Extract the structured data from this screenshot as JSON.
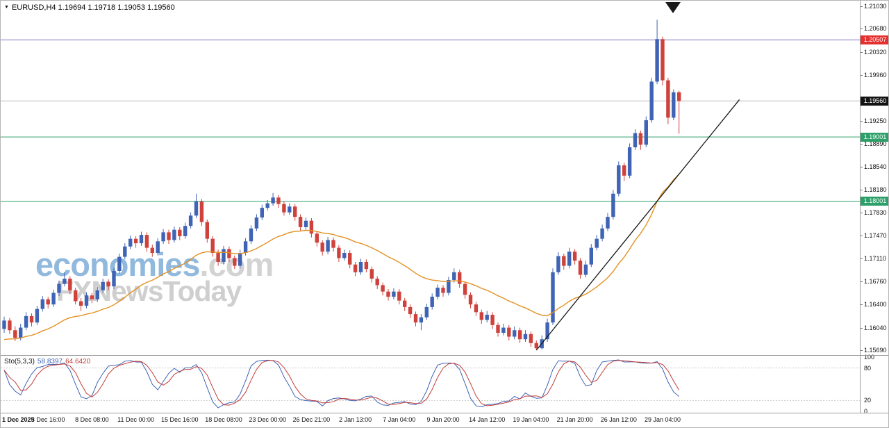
{
  "header": {
    "dropdown_icon": "▼",
    "symbol_info": "EURUSD,H4 1.19694 1.19718 1.19053 1.19560"
  },
  "watermark": {
    "line1_main": "economies",
    "line1_suffix": ".com",
    "line2": "FXNewsToday"
  },
  "price_axis": {
    "ticks": [
      "1.21030",
      "1.20680",
      "1.20320",
      "1.19960",
      "1.19250",
      "1.18890",
      "1.18540",
      "1.18180",
      "1.17830",
      "1.17470",
      "1.17110",
      "1.16760",
      "1.16400",
      "1.16040",
      "1.15690"
    ],
    "badges": [
      {
        "label": "1.20507",
        "bg": "#e53030"
      },
      {
        "label": "1.19560",
        "bg": "#141414"
      },
      {
        "label": "1.19001",
        "bg": "#2da06a"
      },
      {
        "label": "1.18001",
        "bg": "#2da06a"
      }
    ]
  },
  "time_axis": {
    "labels": [
      "1 Dec 2025",
      "3 Dec 16:00",
      "8 Dec 08:00",
      "11 Dec 00:00",
      "15 Dec 16:00",
      "18 Dec 08:00",
      "23 Dec 00:00",
      "26 Dec 21:00",
      "2 Jan 13:00",
      "7 Jan 04:00",
      "9 Jan 20:00",
      "14 Jan 12:00",
      "19 Jan 04:00",
      "21 Jan 20:00",
      "26 Jan 12:00",
      "29 Jan 04:00"
    ]
  },
  "sto_panel": {
    "label": "Sto(5,3,3)",
    "main_value": "58.8397",
    "signal_value": "64.6420",
    "scale_labels": [
      "100",
      "80",
      "20",
      "0"
    ]
  },
  "chart_data": {
    "type": "candlestick",
    "symbol": "EURUSD",
    "timeframe": "H4",
    "current": {
      "open": 1.19694,
      "high": 1.19718,
      "low": 1.19053,
      "close": 1.1956
    },
    "ylim": [
      1.1569,
      1.2103
    ],
    "label_every": 8,
    "colors": {
      "up": "#3f63b5",
      "down": "#cf423c"
    },
    "candles": [
      [
        1.1602,
        1.1621,
        1.1596,
        1.1615
      ],
      [
        1.1615,
        1.1619,
        1.1594,
        1.16
      ],
      [
        1.16,
        1.1606,
        1.1583,
        1.1588
      ],
      [
        1.1588,
        1.161,
        1.1584,
        1.1604
      ],
      [
        1.1604,
        1.1628,
        1.16,
        1.1622
      ],
      [
        1.1622,
        1.1626,
        1.1606,
        1.1612
      ],
      [
        1.1612,
        1.1638,
        1.1608,
        1.1633
      ],
      [
        1.1633,
        1.1653,
        1.1629,
        1.1648
      ],
      [
        1.1648,
        1.1652,
        1.1634,
        1.164
      ],
      [
        1.164,
        1.1663,
        1.1636,
        1.1658
      ],
      [
        1.1658,
        1.1677,
        1.1653,
        1.1672
      ],
      [
        1.1672,
        1.169,
        1.1668,
        1.168
      ],
      [
        1.168,
        1.1684,
        1.1656,
        1.1662
      ],
      [
        1.1662,
        1.1666,
        1.164,
        1.1645
      ],
      [
        1.1645,
        1.165,
        1.163,
        1.1638
      ],
      [
        1.1638,
        1.1659,
        1.1634,
        1.1654
      ],
      [
        1.1654,
        1.1658,
        1.1642,
        1.1648
      ],
      [
        1.1648,
        1.1667,
        1.1644,
        1.1662
      ],
      [
        1.1662,
        1.168,
        1.1658,
        1.1675
      ],
      [
        1.1675,
        1.1679,
        1.1662,
        1.1668
      ],
      [
        1.1668,
        1.1697,
        1.1664,
        1.1692
      ],
      [
        1.1692,
        1.1719,
        1.1688,
        1.1714
      ],
      [
        1.1714,
        1.1735,
        1.171,
        1.173
      ],
      [
        1.173,
        1.1747,
        1.1726,
        1.1742
      ],
      [
        1.1742,
        1.1746,
        1.1728,
        1.1735
      ],
      [
        1.1735,
        1.1753,
        1.1731,
        1.1748
      ],
      [
        1.1748,
        1.1752,
        1.1722,
        1.1728
      ],
      [
        1.1728,
        1.1733,
        1.1714,
        1.172
      ],
      [
        1.172,
        1.1743,
        1.1716,
        1.1738
      ],
      [
        1.1738,
        1.1757,
        1.1734,
        1.1752
      ],
      [
        1.1752,
        1.1756,
        1.1734,
        1.174
      ],
      [
        1.174,
        1.1761,
        1.1736,
        1.1756
      ],
      [
        1.1756,
        1.176,
        1.174,
        1.1746
      ],
      [
        1.1746,
        1.1767,
        1.1742,
        1.1762
      ],
      [
        1.1762,
        1.1783,
        1.1758,
        1.1778
      ],
      [
        1.1778,
        1.1812,
        1.1774,
        1.18
      ],
      [
        1.18,
        1.1804,
        1.1762,
        1.1768
      ],
      [
        1.1768,
        1.1772,
        1.1736,
        1.1742
      ],
      [
        1.1742,
        1.1746,
        1.1714,
        1.172
      ],
      [
        1.172,
        1.1725,
        1.17,
        1.1706
      ],
      [
        1.1706,
        1.1731,
        1.1702,
        1.1726
      ],
      [
        1.1726,
        1.173,
        1.1706,
        1.1712
      ],
      [
        1.1712,
        1.1716,
        1.1695,
        1.17
      ],
      [
        1.17,
        1.1725,
        1.1696,
        1.172
      ],
      [
        1.172,
        1.1743,
        1.1716,
        1.1738
      ],
      [
        1.1738,
        1.1763,
        1.1734,
        1.1758
      ],
      [
        1.1758,
        1.178,
        1.1754,
        1.1775
      ],
      [
        1.1775,
        1.1795,
        1.1771,
        1.179
      ],
      [
        1.179,
        1.1802,
        1.1786,
        1.1797
      ],
      [
        1.1797,
        1.1813,
        1.1793,
        1.1806
      ],
      [
        1.1806,
        1.181,
        1.179,
        1.1796
      ],
      [
        1.1796,
        1.18,
        1.1778,
        1.1783
      ],
      [
        1.1783,
        1.1797,
        1.1779,
        1.1792
      ],
      [
        1.1792,
        1.1796,
        1.177,
        1.1776
      ],
      [
        1.1776,
        1.178,
        1.1754,
        1.176
      ],
      [
        1.176,
        1.1775,
        1.1756,
        1.177
      ],
      [
        1.177,
        1.1774,
        1.1744,
        1.175
      ],
      [
        1.175,
        1.1754,
        1.173,
        1.1736
      ],
      [
        1.1736,
        1.174,
        1.1716,
        1.1722
      ],
      [
        1.1722,
        1.1745,
        1.1718,
        1.174
      ],
      [
        1.174,
        1.1744,
        1.1722,
        1.1728
      ],
      [
        1.1728,
        1.1732,
        1.1706,
        1.1712
      ],
      [
        1.1712,
        1.1725,
        1.1708,
        1.172
      ],
      [
        1.172,
        1.1724,
        1.1696,
        1.1702
      ],
      [
        1.1702,
        1.1706,
        1.1684,
        1.169
      ],
      [
        1.169,
        1.1711,
        1.1686,
        1.1706
      ],
      [
        1.1706,
        1.171,
        1.169,
        1.1695
      ],
      [
        1.1695,
        1.1699,
        1.1674,
        1.168
      ],
      [
        1.168,
        1.1684,
        1.1664,
        1.167
      ],
      [
        1.167,
        1.1674,
        1.1654,
        1.166
      ],
      [
        1.166,
        1.1664,
        1.1646,
        1.1652
      ],
      [
        1.1652,
        1.1665,
        1.1648,
        1.166
      ],
      [
        1.166,
        1.1664,
        1.164,
        1.1646
      ],
      [
        1.1646,
        1.165,
        1.163,
        1.1636
      ],
      [
        1.1636,
        1.164,
        1.1619,
        1.1625
      ],
      [
        1.1625,
        1.1629,
        1.1606,
        1.1612
      ],
      [
        1.1612,
        1.1625,
        1.16,
        1.162
      ],
      [
        1.162,
        1.1641,
        1.1616,
        1.1636
      ],
      [
        1.1636,
        1.1657,
        1.1632,
        1.1652
      ],
      [
        1.1652,
        1.1671,
        1.1648,
        1.1666
      ],
      [
        1.1666,
        1.167,
        1.1652,
        1.1658
      ],
      [
        1.1658,
        1.1683,
        1.1654,
        1.1678
      ],
      [
        1.1678,
        1.1696,
        1.1674,
        1.169
      ],
      [
        1.169,
        1.1694,
        1.1666,
        1.1672
      ],
      [
        1.1672,
        1.1676,
        1.1649,
        1.1655
      ],
      [
        1.1655,
        1.1659,
        1.1634,
        1.164
      ],
      [
        1.164,
        1.1644,
        1.1622,
        1.1628
      ],
      [
        1.1628,
        1.1632,
        1.161,
        1.1616
      ],
      [
        1.1616,
        1.163,
        1.1612,
        1.1624
      ],
      [
        1.1624,
        1.1628,
        1.1602,
        1.1608
      ],
      [
        1.1608,
        1.1612,
        1.159,
        1.1596
      ],
      [
        1.1596,
        1.161,
        1.1592,
        1.1604
      ],
      [
        1.1604,
        1.1608,
        1.1584,
        1.159
      ],
      [
        1.159,
        1.1606,
        1.1586,
        1.16
      ],
      [
        1.16,
        1.1604,
        1.158,
        1.1586
      ],
      [
        1.1586,
        1.16,
        1.1582,
        1.1594
      ],
      [
        1.1594,
        1.1598,
        1.1574,
        1.158
      ],
      [
        1.158,
        1.1584,
        1.1569,
        1.1572
      ],
      [
        1.1572,
        1.1592,
        1.157,
        1.1586
      ],
      [
        1.1586,
        1.1618,
        1.1582,
        1.1612
      ],
      [
        1.1612,
        1.1696,
        1.1608,
        1.169
      ],
      [
        1.169,
        1.1721,
        1.1686,
        1.1715
      ],
      [
        1.1715,
        1.1719,
        1.1694,
        1.17
      ],
      [
        1.17,
        1.1728,
        1.1696,
        1.1722
      ],
      [
        1.1722,
        1.1726,
        1.1702,
        1.1708
      ],
      [
        1.1708,
        1.1712,
        1.168,
        1.1686
      ],
      [
        1.1686,
        1.1708,
        1.1682,
        1.1702
      ],
      [
        1.1702,
        1.1734,
        1.1698,
        1.1728
      ],
      [
        1.1728,
        1.1748,
        1.1724,
        1.1742
      ],
      [
        1.1742,
        1.1764,
        1.1738,
        1.1758
      ],
      [
        1.1758,
        1.1782,
        1.1754,
        1.1776
      ],
      [
        1.1776,
        1.1818,
        1.1772,
        1.1812
      ],
      [
        1.1812,
        1.1862,
        1.1808,
        1.1856
      ],
      [
        1.1856,
        1.186,
        1.1832,
        1.184
      ],
      [
        1.184,
        1.189,
        1.1836,
        1.1884
      ],
      [
        1.1884,
        1.1912,
        1.188,
        1.1906
      ],
      [
        1.1906,
        1.191,
        1.188,
        1.1888
      ],
      [
        1.1888,
        1.1932,
        1.1884,
        1.1926
      ],
      [
        1.1926,
        1.1992,
        1.1922,
        1.1986
      ],
      [
        1.1986,
        1.2082,
        1.1982,
        1.2052
      ],
      [
        1.2052,
        1.2056,
        1.198,
        1.1988
      ],
      [
        1.1988,
        1.1992,
        1.192,
        1.193
      ],
      [
        1.193,
        1.1974,
        1.1926,
        1.19694
      ],
      [
        1.19694,
        1.19718,
        1.19053,
        1.1956
      ]
    ],
    "ma": {
      "type": "ema",
      "period": 26,
      "seed": 1.1583,
      "color": "#e39122"
    },
    "levels": [
      {
        "price": 1.20507,
        "color": "#7d6ac8"
      },
      {
        "price": 1.19001,
        "color": "#2da06a"
      },
      {
        "price": 1.18001,
        "color": "#2da06a"
      }
    ],
    "current_price_line": {
      "price": 1.1956,
      "color": "#bdbdbd"
    },
    "trendline": {
      "from_index": 97,
      "from_price": 1.1569,
      "to_index": 134,
      "to_price": 1.1958,
      "color": "#141414"
    },
    "stochastic": {
      "k": 5,
      "slow": 3,
      "d": 3,
      "range": [
        0,
        100
      ],
      "levels": [
        80,
        20
      ],
      "main_color": "#3f63b5",
      "signal_color": "#c33c38"
    }
  }
}
